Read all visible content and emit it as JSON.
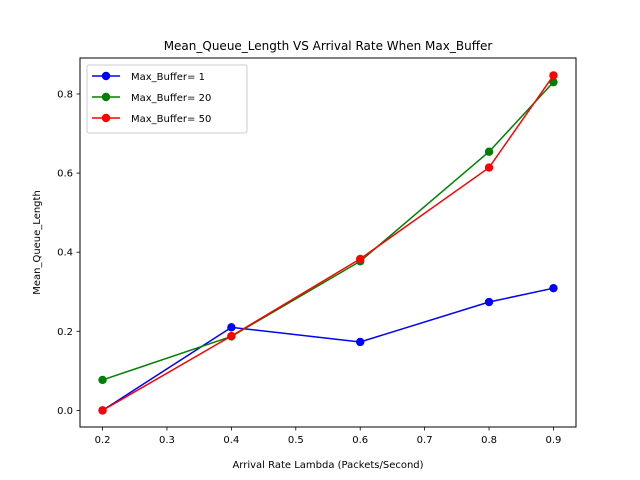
{
  "chart_data": {
    "type": "line",
    "title": "Mean_Queue_Length VS Arrival Rate When Max_Buffer",
    "xlabel": "Arrival Rate Lambda (Packets/Second)",
    "ylabel": "Mean_Queue_Length",
    "x": [
      0.2,
      0.4,
      0.6,
      0.8,
      0.9
    ],
    "xlim": [
      0.165,
      0.935
    ],
    "ylim": [
      -0.042,
      0.891
    ],
    "xticks": [
      "0.2",
      "0.3",
      "0.4",
      "0.5",
      "0.6",
      "0.7",
      "0.8",
      "0.9"
    ],
    "xtick_values": [
      0.2,
      0.3,
      0.4,
      0.5,
      0.6,
      0.7,
      0.8,
      0.9
    ],
    "yticks": [
      "0.0",
      "0.2",
      "0.4",
      "0.6",
      "0.8"
    ],
    "ytick_values": [
      0.0,
      0.2,
      0.4,
      0.6,
      0.8
    ],
    "grid": false,
    "legend_position": "upper-left",
    "series": [
      {
        "name": "Max_Buffer= 1",
        "color": "#0000ff",
        "marker": "circle",
        "values": [
          0.0,
          0.21,
          0.173,
          0.274,
          0.309
        ]
      },
      {
        "name": "Max_Buffer= 20",
        "color": "#008000",
        "marker": "circle",
        "values": [
          0.077,
          0.187,
          0.377,
          0.654,
          0.83
        ]
      },
      {
        "name": "Max_Buffer= 50",
        "color": "#ff0000",
        "marker": "circle",
        "values": [
          0.0,
          0.188,
          0.383,
          0.614,
          0.847
        ]
      }
    ]
  }
}
